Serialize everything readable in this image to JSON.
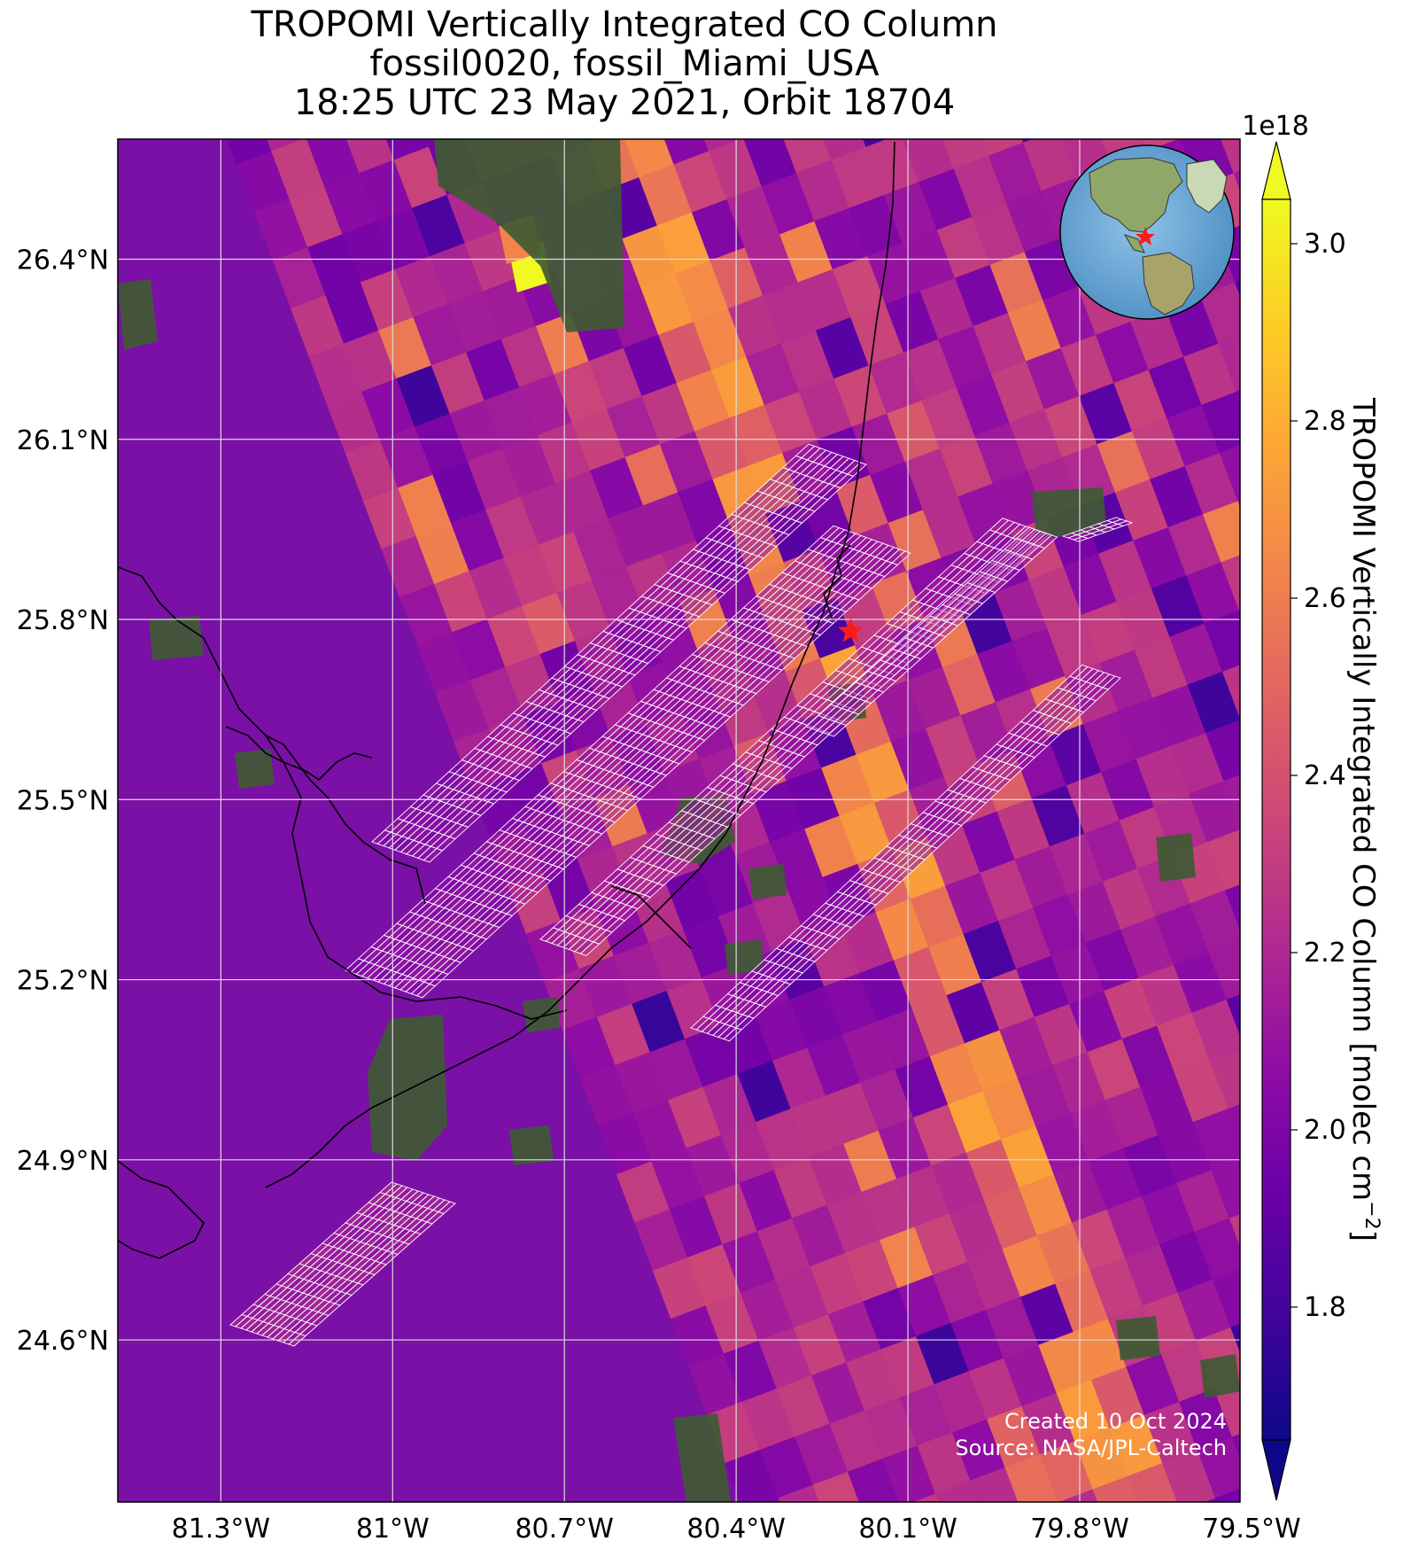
{
  "title": {
    "line1": "TROPOMI Vertically Integrated CO Column",
    "line2": "fossil0020, fossil_Miami_USA",
    "line3": "18:25 UTC 23 May 2021, Orbit 18704"
  },
  "chart_data": {
    "type": "heatmap",
    "lon_ticks": [
      "81.3°W",
      "81°W",
      "80.7°W",
      "80.4°W",
      "80.1°W",
      "79.8°W",
      "79.5°W"
    ],
    "lat_ticks": [
      "26.4°N",
      "26.1°N",
      "25.8°N",
      "25.5°N",
      "25.2°N",
      "24.9°N",
      "24.6°N"
    ],
    "lon_values": [
      -81.3,
      -81.0,
      -80.7,
      -80.4,
      -80.1,
      -79.8,
      -79.5
    ],
    "lat_values": [
      26.4,
      26.1,
      25.8,
      25.5,
      25.2,
      24.9,
      24.6
    ],
    "xlim": [
      -81.48,
      -79.52
    ],
    "ylim": [
      24.33,
      26.6
    ],
    "grid": true,
    "colorbar": {
      "label": "TROPOMI Vertically Integrated CO Column [molec cm",
      "label_superscript": "−2",
      "label_end": "]",
      "exponent": "1e18",
      "ticks": [
        "1.8",
        "2.0",
        "2.2",
        "2.4",
        "2.6",
        "2.8",
        "3.0"
      ],
      "tick_values": [
        1.8,
        2.0,
        2.2,
        2.4,
        2.6,
        2.8,
        3.0
      ],
      "range": [
        1.65,
        3.05
      ],
      "extend": "both",
      "colormap": "plasma"
    },
    "target": {
      "name_marker": "red-star",
      "lon": -80.2,
      "lat": 25.78
    },
    "credit_line1": "Created 10 Oct 2024",
    "credit_line2": "Source: NASA/JPL-Caltech"
  }
}
